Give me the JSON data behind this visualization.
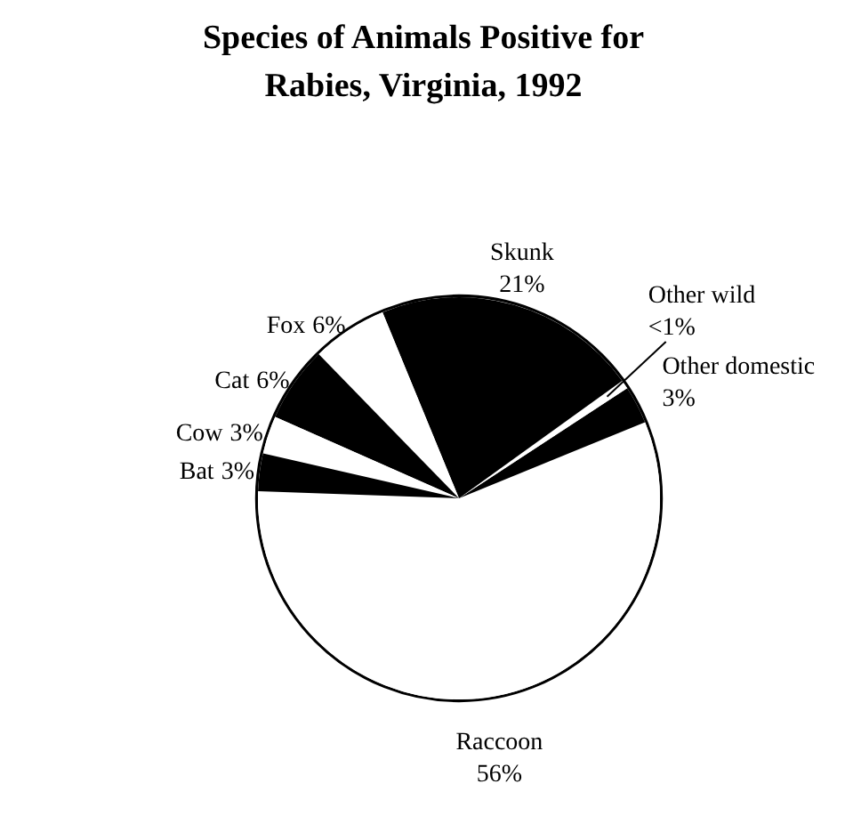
{
  "chart_data": {
    "type": "pie",
    "title": "Species of Animals Positive for Rabies, Virginia, 1992",
    "categories": [
      "Raccoon",
      "Other domestic",
      "Other wild",
      "Skunk",
      "Fox",
      "Cat",
      "Cow",
      "Bat"
    ],
    "values": [
      56,
      3,
      0.7,
      21,
      6,
      6,
      3,
      3
    ],
    "value_labels": [
      "56%",
      "3%",
      "<1%",
      "21%",
      "6%",
      "6%",
      "3%",
      "3%"
    ],
    "colors": [
      "#ffffff",
      "#000000",
      "#ffffff",
      "#000000",
      "#ffffff",
      "#000000",
      "#ffffff",
      "#000000"
    ]
  }
}
